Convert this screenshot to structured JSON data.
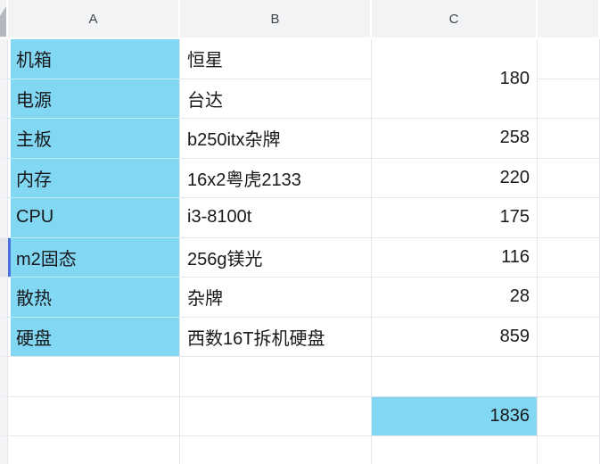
{
  "sheet": {
    "columns": {
      "a": "A",
      "b": "B",
      "c": "C"
    },
    "parts": [
      {
        "label": "机箱",
        "item": "恒星",
        "price": ""
      },
      {
        "label": "电源",
        "item": "台达",
        "price": ""
      },
      {
        "label": "主板",
        "item": "b250itx杂牌",
        "price": "258"
      },
      {
        "label": "内存",
        "item": "16x2粤虎2133",
        "price": "220"
      },
      {
        "label": "CPU",
        "item": "i3-8100t",
        "price": "175"
      },
      {
        "label": "m2固态",
        "item": "256g镁光",
        "price": "116"
      },
      {
        "label": "散热",
        "item": "杂牌",
        "price": "28"
      },
      {
        "label": "硬盘",
        "item": "西数16T拆机硬盘",
        "price": "859"
      }
    ],
    "merged_price": "180",
    "total": "1836",
    "selected_row_label": "m2固态"
  },
  "colors": {
    "cell_fill": "#82d7f3",
    "selection_bar": "#4a6fe3",
    "header_bg": "#f2f3f5",
    "grid_line": "#e4e6ea"
  }
}
